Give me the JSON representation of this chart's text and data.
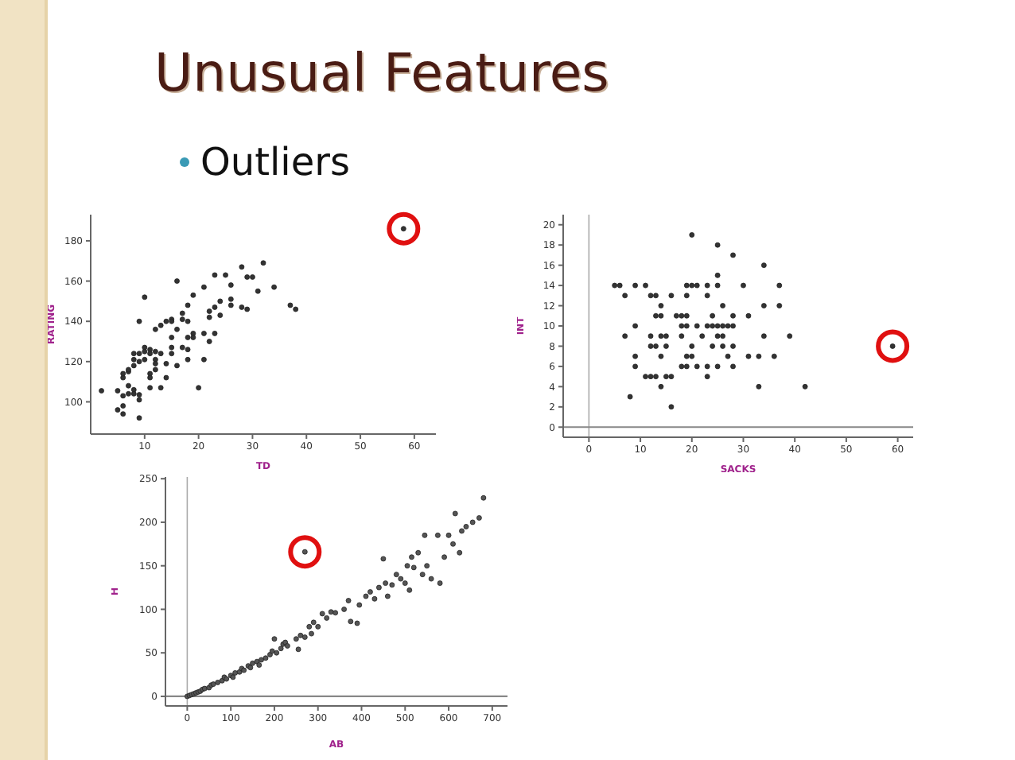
{
  "chart_data": [
    {
      "type": "scatter",
      "title": "Unusual Features",
      "subtitle": "Outliers",
      "xlabel": "TD",
      "ylabel": "RATING",
      "xlim": [
        0,
        64
      ],
      "ylim": [
        84,
        193
      ],
      "xticks": [
        10,
        20,
        30,
        40,
        50,
        60
      ],
      "yticks": [
        100,
        120,
        140,
        160,
        180
      ],
      "marker": "circle",
      "series": [
        {
          "color": "#333333",
          "x": [
            2,
            5,
            5,
            6,
            6,
            6,
            6,
            6,
            7,
            7,
            7,
            7,
            8,
            8,
            8,
            8,
            8,
            9,
            9,
            9,
            9,
            9,
            9,
            10,
            10,
            10,
            10,
            11,
            11,
            11,
            11,
            11,
            12,
            12,
            12,
            12,
            12,
            13,
            13,
            13,
            14,
            14,
            14,
            15,
            15,
            15,
            15,
            15,
            16,
            16,
            16,
            17,
            17,
            17,
            18,
            18,
            18,
            18,
            18,
            19,
            19,
            19,
            20,
            21,
            21,
            21,
            22,
            22,
            22,
            23,
            23,
            23,
            24,
            24,
            25,
            26,
            26,
            26,
            28,
            28,
            29,
            29,
            30,
            31,
            32,
            34,
            37,
            38
          ],
          "values": [
            105.5,
            105.5,
            96,
            94,
            98,
            103,
            112,
            114,
            104,
            108,
            115,
            116,
            106,
            118,
            121,
            124,
            104,
            103.5,
            101,
            92,
            140,
            124,
            120,
            152,
            127,
            125,
            121,
            126,
            124,
            114,
            112,
            107,
            136,
            125,
            121,
            119,
            116,
            138,
            124,
            107,
            140,
            119,
            112,
            141,
            140,
            132,
            127,
            124,
            160,
            136,
            118,
            144,
            141,
            127,
            148,
            140,
            132,
            126,
            121,
            153,
            134,
            132,
            107,
            157,
            134,
            121,
            145,
            142,
            130,
            163,
            147,
            134,
            150,
            143,
            163,
            158,
            151,
            148,
            167,
            147,
            162,
            146,
            162,
            155,
            169,
            157,
            148,
            146
          ]
        },
        {
          "color": "#333333",
          "x": [
            58
          ],
          "values": [
            186
          ]
        }
      ]
    },
    {
      "type": "scatter",
      "xlabel": "SACKS",
      "ylabel": "INT",
      "xlim": [
        -5,
        63
      ],
      "ylim": [
        -1,
        21
      ],
      "xticks": [
        0,
        10,
        20,
        30,
        40,
        50,
        60
      ],
      "yticks": [
        0,
        2,
        4,
        6,
        8,
        10,
        12,
        14,
        16,
        18,
        20
      ],
      "marker": "circle",
      "ref_lines": [
        {
          "axis": "x",
          "value": 0,
          "color": "#aaaaaa"
        },
        {
          "axis": "y",
          "value": 0,
          "color": "#888888"
        }
      ],
      "series": [
        {
          "color": "#333333",
          "x": [
            5,
            6,
            9,
            11,
            19,
            20,
            21,
            23,
            25,
            30,
            37,
            7,
            12,
            13,
            16,
            19,
            23,
            14,
            26,
            34,
            37,
            13,
            14,
            17,
            18,
            19,
            24,
            28,
            31,
            9,
            18,
            19,
            21,
            23,
            24,
            25,
            26,
            27,
            28,
            7,
            12,
            14,
            15,
            18,
            22,
            25,
            26,
            34,
            39,
            12,
            13,
            15,
            20,
            24,
            26,
            28,
            9,
            14,
            19,
            20,
            27,
            31,
            33,
            36,
            9,
            18,
            19,
            21,
            23,
            25,
            28,
            11,
            12,
            13,
            15,
            16,
            23,
            14,
            33,
            42,
            8,
            16,
            20,
            25,
            28,
            34,
            25
          ],
          "values": [
            14,
            14,
            14,
            14,
            14,
            14,
            14,
            14,
            14,
            14,
            14,
            13,
            13,
            13,
            13,
            13,
            13,
            12,
            12,
            12,
            12,
            11,
            11,
            11,
            11,
            11,
            11,
            11,
            11,
            10,
            10,
            10,
            10,
            10,
            10,
            10,
            10,
            10,
            10,
            9,
            9,
            9,
            9,
            9,
            9,
            9,
            9,
            9,
            9,
            8,
            8,
            8,
            8,
            8,
            8,
            8,
            7,
            7,
            7,
            7,
            7,
            7,
            7,
            7,
            6,
            6,
            6,
            6,
            6,
            6,
            6,
            5,
            5,
            5,
            5,
            5,
            5,
            4,
            4,
            4,
            3,
            2,
            19,
            18,
            17,
            16,
            15
          ]
        },
        {
          "color": "#333333",
          "x": [
            59
          ],
          "values": [
            8
          ]
        }
      ]
    },
    {
      "type": "scatter",
      "xlabel": "AB",
      "ylabel": "H",
      "xlim": [
        -50,
        735
      ],
      "ylim": [
        -11,
        252
      ],
      "xticks": [
        0,
        100,
        200,
        300,
        400,
        500,
        600,
        700
      ],
      "yticks": [
        0,
        50,
        100,
        150,
        200,
        250
      ],
      "marker": "circle",
      "ref_lines": [
        {
          "axis": "x",
          "value": 0,
          "color": "#aaaaaa"
        },
        {
          "axis": "y",
          "value": 0,
          "color": "#888888"
        }
      ],
      "series": [
        {
          "color": "#555555",
          "x": [
            0,
            5,
            10,
            15,
            20,
            25,
            30,
            35,
            40,
            50,
            55,
            60,
            70,
            80,
            85,
            90,
            100,
            105,
            110,
            120,
            125,
            130,
            140,
            145,
            150,
            160,
            165,
            170,
            180,
            190,
            195,
            200,
            205,
            215,
            220,
            225,
            230,
            250,
            255,
            260,
            270,
            280,
            285,
            290,
            300,
            310,
            320,
            330,
            340,
            360,
            370,
            375,
            390,
            395,
            410,
            420,
            430,
            440,
            450,
            455,
            460,
            470,
            480,
            490,
            500,
            505,
            510,
            515,
            520,
            530,
            540,
            545,
            550,
            560,
            575,
            580,
            590,
            600,
            610,
            615,
            625,
            630,
            640,
            655,
            670,
            680
          ],
          "values": [
            0,
            1,
            2,
            3,
            4,
            5,
            6,
            8,
            9,
            10,
            13,
            14,
            16,
            18,
            22,
            20,
            24,
            22,
            27,
            28,
            32,
            30,
            35,
            33,
            38,
            40,
            36,
            42,
            44,
            48,
            52,
            66,
            50,
            55,
            60,
            62,
            58,
            66,
            54,
            70,
            68,
            80,
            72,
            85,
            80,
            95,
            90,
            97,
            96,
            100,
            110,
            86,
            84,
            105,
            115,
            120,
            112,
            125,
            158,
            130,
            115,
            128,
            140,
            135,
            130,
            150,
            122,
            160,
            148,
            165,
            140,
            185,
            150,
            135,
            185,
            130,
            160,
            185,
            175,
            210,
            165,
            190,
            195,
            200,
            205,
            228
          ]
        },
        {
          "color": "#555555",
          "x": [
            270
          ],
          "values": [
            166
          ]
        }
      ]
    }
  ]
}
